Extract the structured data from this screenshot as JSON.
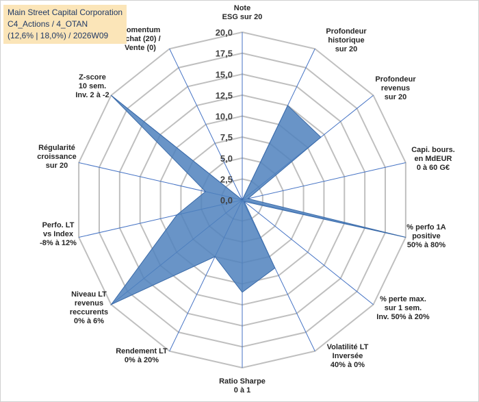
{
  "title": {
    "line1": "Main Street Capital Corporation",
    "line2": "C4_Actions / 4_OTAN",
    "line3": "(12,6% | 18,0%) / 2026W09"
  },
  "colors": {
    "fill": "#4f81bd",
    "fill_opacity": 0.85,
    "grid": "#bfbfbf",
    "spoke": "#4472c4",
    "title_bg": "#fbe5b8"
  },
  "chart_data": {
    "type": "radar",
    "rlim": [
      0,
      20
    ],
    "ticks": [
      "0,0",
      "2,5",
      "5,0",
      "7,5",
      "10,0",
      "12,5",
      "15,0",
      "17,5",
      "20,0"
    ],
    "tick_values": [
      0,
      2.5,
      5,
      7.5,
      10,
      12.5,
      15,
      17.5,
      20
    ],
    "grid": true,
    "legend": "none",
    "axes": [
      {
        "label": [
          "Note",
          "ESG sur 20"
        ]
      },
      {
        "label": [
          "Profondeur",
          "historique",
          "sur 20"
        ]
      },
      {
        "label": [
          "Profondeur",
          "revenus",
          "sur 20"
        ]
      },
      {
        "label": [
          "Capi. bours.",
          "en MdEUR",
          "0 à 60 G€"
        ]
      },
      {
        "label": [
          "% perfo 1A",
          "positive",
          "50% à 80%"
        ]
      },
      {
        "label": [
          "% perte max.",
          "sur 1 sem.",
          "Inv. 50% à 20%"
        ]
      },
      {
        "label": [
          "Volatilité LT",
          "Inversée",
          "40% à 0%"
        ]
      },
      {
        "label": [
          "Ratio Sharpe",
          "0 à 1"
        ]
      },
      {
        "label": [
          "Rendement LT",
          "0% à 20%"
        ]
      },
      {
        "label": [
          "Niveau LT",
          "revenus",
          "reccurents",
          "0% à 6%"
        ]
      },
      {
        "label": [
          "Perfo. LT",
          "vs Index",
          "-8% à 12%"
        ]
      },
      {
        "label": [
          "Régularité",
          "croissance",
          "sur 20"
        ]
      },
      {
        "label": [
          "Z-score",
          "10 sem.",
          "Inv. 2 à -2"
        ]
      },
      {
        "label": [
          "Momentum",
          "Achat (20) /",
          "Vente (0)"
        ]
      }
    ],
    "series": [
      {
        "values": [
          0,
          12.5,
          12.0,
          0.7,
          20.0,
          0.3,
          9.0,
          11.0,
          7.5,
          20.0,
          8.0,
          4.5,
          20.0,
          0
        ]
      }
    ]
  }
}
